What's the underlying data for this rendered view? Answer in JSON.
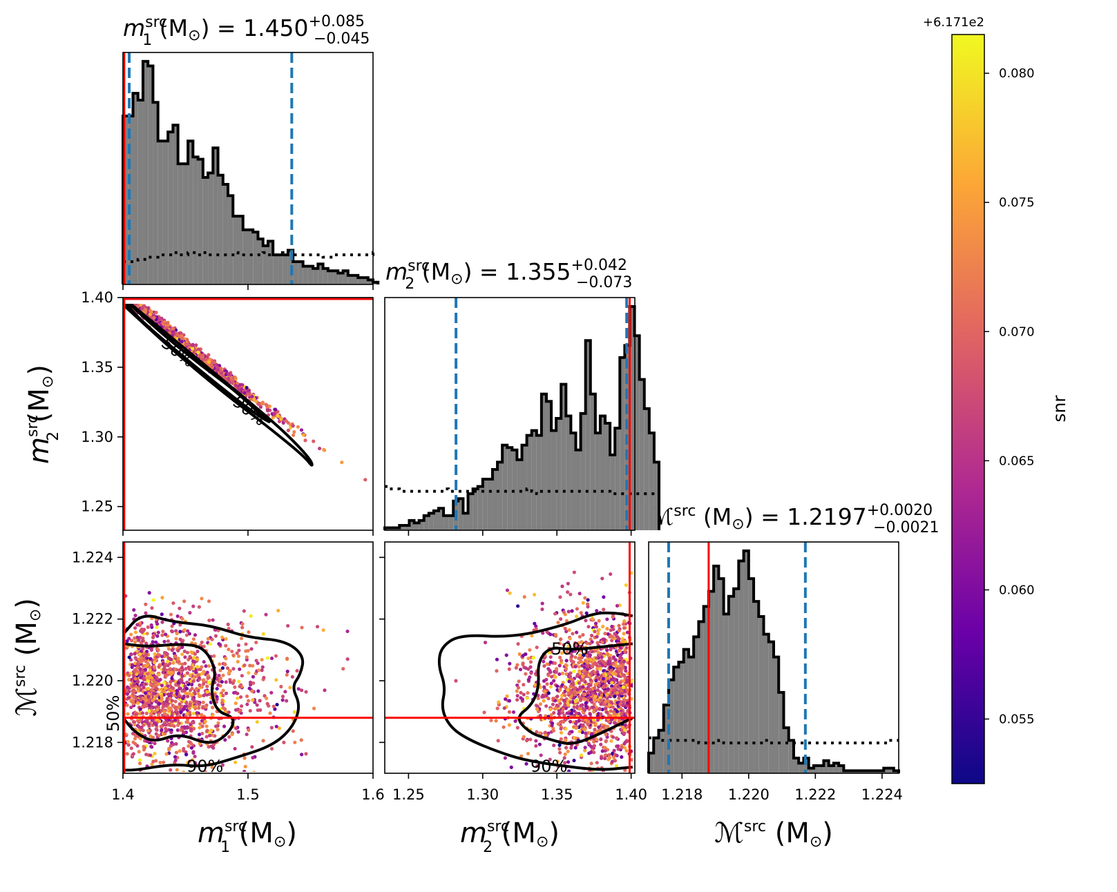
{
  "colors": {
    "hist_fill": "#808080",
    "hist_edge": "#000000",
    "injection_line": "#ff0000",
    "quantile_line": "#1f77b4",
    "colormap": [
      "#0d0887",
      "#6a00a8",
      "#b12a90",
      "#e16462",
      "#fca636",
      "#f0f921"
    ]
  },
  "titles": {
    "m1": {
      "name": "m",
      "sub": "1",
      "sup": "src",
      "unit": " (M",
      "unit_close": ") = ",
      "median": "1.450",
      "plus": "+0.085",
      "minus": "−0.045"
    },
    "m2": {
      "name": "m",
      "sub": "2",
      "sup": "src",
      "unit": " (M",
      "unit_close": ") = ",
      "median": "1.355",
      "plus": "+0.042",
      "minus": "−0.073"
    },
    "mc": {
      "name": "ℳ",
      "sup": "src",
      "unit": " (M",
      "unit_close": ") = ",
      "median": "1.2197",
      "plus": "+0.0020",
      "minus": "−0.0021"
    }
  },
  "axis_labels": {
    "m1": {
      "name": "m",
      "sub": "1",
      "sup": "src",
      "unit": " (M",
      "close": ")"
    },
    "m2": {
      "name": "m",
      "sub": "2",
      "sup": "src",
      "unit": " (M",
      "close": ")"
    },
    "mc": {
      "name": "ℳ",
      "sup": "src",
      "unit": " (M",
      "close": ")"
    },
    "sun": "⊙"
  },
  "contour_labels": {
    "inner": "50%",
    "outer": "90%"
  },
  "colorbar": {
    "label": "snr",
    "offset_text": "+6.171e2",
    "range": [
      0.0525,
      0.0815
    ],
    "ticks": [
      "0.055",
      "0.060",
      "0.065",
      "0.070",
      "0.075",
      "0.080"
    ]
  },
  "chart_data": [
    {
      "type": "bar",
      "panel": "m1-marginal",
      "x_range": [
        1.4,
        1.6
      ],
      "median": 1.45,
      "credible_interval": [
        1.405,
        1.535
      ],
      "injection": 1.401,
      "bin_edges_start": 1.4,
      "bin_width": 0.004,
      "counts": [
        74,
        74,
        84,
        81,
        98,
        96,
        80,
        63,
        63,
        67,
        70,
        53,
        53,
        63,
        56,
        55,
        47,
        49,
        60,
        48,
        44,
        39,
        30,
        30,
        24,
        24,
        23,
        20,
        17,
        19,
        13,
        13,
        13,
        15,
        10,
        10,
        8,
        8,
        7,
        9,
        7,
        6,
        6,
        5,
        6,
        4,
        4,
        3,
        3,
        2,
        1
      ],
      "prior": [
        10,
        10,
        10,
        11,
        11,
        12,
        12,
        13,
        13,
        13,
        14,
        13,
        13,
        14,
        14,
        13,
        14,
        13,
        13,
        13,
        13,
        13,
        14,
        13,
        13,
        13,
        13,
        13,
        14,
        13,
        13,
        14,
        13,
        13,
        13,
        13,
        13,
        13,
        13,
        13,
        12,
        12,
        13,
        13,
        13,
        13,
        13,
        13,
        13,
        13,
        14
      ]
    },
    {
      "type": "bar",
      "panel": "m2-marginal",
      "x_range": [
        1.234,
        1.4025
      ],
      "median": 1.355,
      "credible_interval": [
        1.282,
        1.397
      ],
      "injection": 1.399,
      "bin_edges_start": 1.234,
      "bin_width": 0.0033,
      "counts": [
        1,
        1,
        1,
        2,
        2,
        4,
        3,
        4,
        6,
        7,
        8,
        9,
        6,
        6,
        12,
        13,
        7,
        15,
        17,
        18,
        21,
        21,
        25,
        28,
        35,
        34,
        33,
        29,
        35,
        39,
        41,
        39,
        56,
        53,
        41,
        46,
        60,
        47,
        40,
        33,
        48,
        78,
        56,
        40,
        47,
        44,
        31,
        42,
        71,
        76,
        92,
        80,
        62,
        50,
        40,
        28
      ],
      "prior": [
        18,
        17,
        17,
        16,
        16,
        16,
        16,
        16,
        16,
        16,
        16,
        16,
        17,
        16,
        16,
        16,
        16,
        16,
        16,
        16,
        16,
        16,
        16,
        16,
        16,
        16,
        16,
        16,
        16,
        17,
        16,
        15,
        16,
        16,
        16,
        16,
        16,
        16,
        16,
        16,
        16,
        16,
        16,
        16,
        16,
        16,
        15,
        15,
        15,
        15,
        15,
        15,
        15,
        15,
        15,
        15
      ]
    },
    {
      "type": "bar",
      "panel": "mc-marginal",
      "x_range": [
        1.217,
        1.2245
      ],
      "median": 1.2197,
      "credible_interval": [
        1.2176,
        1.2217
      ],
      "injection": 1.2188,
      "bin_edges_start": 1.217,
      "bin_width": 0.00015,
      "counts": [
        8,
        14,
        17,
        27,
        37,
        42,
        44,
        49,
        46,
        54,
        60,
        66,
        72,
        82,
        77,
        63,
        70,
        73,
        84,
        88,
        77,
        68,
        62,
        55,
        52,
        46,
        32,
        18,
        13,
        6,
        4,
        6,
        2,
        3,
        3,
        5,
        3,
        4,
        3,
        1,
        1,
        1,
        1,
        1,
        1,
        1,
        1,
        2,
        2,
        1
      ],
      "prior": [
        14,
        14,
        13,
        13,
        13,
        13,
        13,
        13,
        13,
        13,
        12,
        12,
        12,
        12,
        13,
        12,
        12,
        12,
        12,
        12,
        12,
        12,
        12,
        13,
        12,
        12,
        12,
        12,
        12,
        12,
        12,
        12,
        12,
        12,
        12,
        12,
        12,
        12,
        12,
        12,
        12,
        12,
        12,
        12,
        12,
        12,
        12,
        12,
        13,
        13
      ]
    },
    {
      "type": "scatter",
      "panel": "m1-m2",
      "x_range": [
        1.4,
        1.6
      ],
      "y_range": [
        1.233,
        1.4
      ],
      "relation": "m2 = 2.3855 - 0.7027 * m1 (narrow band)",
      "injection": {
        "x": 1.401,
        "y": 1.399
      },
      "contours": {
        "50%": [
          [
            1.401,
            1.399
          ],
          [
            1.43,
            1.375
          ],
          [
            1.46,
            1.353
          ],
          [
            1.49,
            1.333
          ],
          [
            1.51,
            1.316
          ],
          [
            1.52,
            1.309
          ],
          [
            1.505,
            1.317
          ],
          [
            1.475,
            1.338
          ],
          [
            1.445,
            1.36
          ],
          [
            1.415,
            1.383
          ],
          [
            1.401,
            1.397
          ]
        ],
        "90%": [
          [
            1.4,
            1.4
          ],
          [
            1.45,
            1.363
          ],
          [
            1.5,
            1.326
          ],
          [
            1.53,
            1.303
          ],
          [
            1.55,
            1.284
          ],
          [
            1.552,
            1.278
          ],
          [
            1.545,
            1.286
          ],
          [
            1.515,
            1.308
          ],
          [
            1.48,
            1.332
          ],
          [
            1.44,
            1.362
          ],
          [
            1.4,
            1.395
          ]
        ]
      }
    },
    {
      "type": "scatter",
      "panel": "m1-mc",
      "x_range": [
        1.4,
        1.6
      ],
      "y_range": [
        1.217,
        1.2245
      ],
      "injection": {
        "x": 1.401,
        "y": 1.2188
      },
      "contours": {
        "50%": [
          [
            1.4,
            1.2212
          ],
          [
            1.42,
            1.2211
          ],
          [
            1.445,
            1.2212
          ],
          [
            1.465,
            1.2211
          ],
          [
            1.475,
            1.2203
          ],
          [
            1.47,
            1.2197
          ],
          [
            1.475,
            1.219
          ],
          [
            1.49,
            1.2188
          ],
          [
            1.485,
            1.2183
          ],
          [
            1.47,
            1.2179
          ],
          [
            1.445,
            1.2183
          ],
          [
            1.425,
            1.218
          ],
          [
            1.41,
            1.2183
          ],
          [
            1.4,
            1.2188
          ]
        ],
        "90%": [
          [
            1.4,
            1.2215
          ],
          [
            1.415,
            1.2222
          ],
          [
            1.44,
            1.2219
          ],
          [
            1.47,
            1.2218
          ],
          [
            1.5,
            1.2214
          ],
          [
            1.53,
            1.2213
          ],
          [
            1.545,
            1.2208
          ],
          [
            1.542,
            1.2202
          ],
          [
            1.535,
            1.2198
          ],
          [
            1.542,
            1.2192
          ],
          [
            1.536,
            1.2185
          ],
          [
            1.52,
            1.2179
          ],
          [
            1.49,
            1.2175
          ],
          [
            1.465,
            1.2172
          ],
          [
            1.44,
            1.2173
          ],
          [
            1.41,
            1.2171
          ],
          [
            1.4,
            1.2171
          ]
        ]
      }
    },
    {
      "type": "scatter",
      "panel": "m2-mc",
      "x_range": [
        1.234,
        1.4025
      ],
      "y_range": [
        1.217,
        1.2245
      ],
      "injection": {
        "x": 1.399,
        "y": 1.2188
      },
      "contours": {
        "50%": [
          [
            1.401,
            1.2212
          ],
          [
            1.38,
            1.2211
          ],
          [
            1.36,
            1.221
          ],
          [
            1.345,
            1.2211
          ],
          [
            1.337,
            1.2206
          ],
          [
            1.338,
            1.2198
          ],
          [
            1.333,
            1.2192
          ],
          [
            1.322,
            1.2188
          ],
          [
            1.332,
            1.2183
          ],
          [
            1.345,
            1.2181
          ],
          [
            1.36,
            1.2179
          ],
          [
            1.38,
            1.2183
          ],
          [
            1.401,
            1.2188
          ]
        ],
        "90%": [
          [
            1.401,
            1.2221
          ],
          [
            1.39,
            1.2222
          ],
          [
            1.375,
            1.2222
          ],
          [
            1.355,
            1.2218
          ],
          [
            1.32,
            1.2214
          ],
          [
            1.285,
            1.2215
          ],
          [
            1.272,
            1.2211
          ],
          [
            1.27,
            1.2205
          ],
          [
            1.275,
            1.2198
          ],
          [
            1.272,
            1.2191
          ],
          [
            1.278,
            1.2185
          ],
          [
            1.29,
            1.2181
          ],
          [
            1.31,
            1.2177
          ],
          [
            1.33,
            1.2174
          ],
          [
            1.36,
            1.2172
          ],
          [
            1.38,
            1.2171
          ],
          [
            1.401,
            1.2172
          ]
        ]
      }
    }
  ],
  "ticks": {
    "m1": [
      "1.4",
      "1.5",
      "1.6"
    ],
    "m2_y": [
      "1.25",
      "1.30",
      "1.35",
      "1.40"
    ],
    "m2_x": [
      "1.25",
      "1.30",
      "1.35",
      "1.40"
    ],
    "mc_y": [
      "1.218",
      "1.220",
      "1.222",
      "1.224"
    ],
    "mc_x": [
      "1.218",
      "1.220",
      "1.222",
      "1.224"
    ]
  }
}
